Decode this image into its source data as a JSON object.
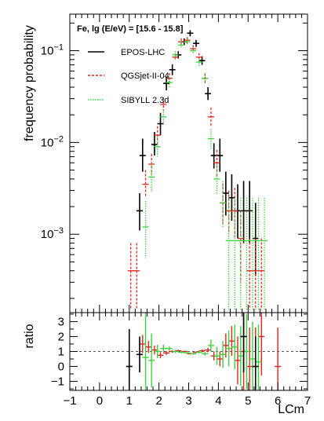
{
  "chart_data": [
    {
      "type": "scatter",
      "panel": "main",
      "annotation": "Fe, lg (E/eV) = [15.6 - 15.8]",
      "ylabel": "frequency probability",
      "xlabel": "",
      "xlim": [
        -1,
        7
      ],
      "ylim": [
        0.00014,
        0.25
      ],
      "yscale": "log",
      "y_tick_labels": [
        {
          "value": 0.1,
          "base": "10",
          "exp": "−1"
        },
        {
          "value": 0.01,
          "base": "10",
          "exp": "−2"
        },
        {
          "value": 0.001,
          "base": "10",
          "exp": "−3"
        }
      ],
      "legend_position": "top-left",
      "series": [
        {
          "name": "EPOS-LHC",
          "color": "#000000",
          "dash": "solid",
          "points": [
            {
              "x": 1.35,
              "y": 0.0018,
              "lo": 0.0011,
              "hi": 0.0028
            },
            {
              "x": 1.45,
              "y": 0.0072,
              "lo": 0.0048,
              "hi": 0.011
            },
            {
              "x": 1.85,
              "y": 0.0095,
              "lo": 0.0072,
              "hi": 0.013
            },
            {
              "x": 2.05,
              "y": 0.016,
              "lo": 0.012,
              "hi": 0.021
            },
            {
              "x": 2.25,
              "y": 0.044,
              "lo": 0.037,
              "hi": 0.052
            },
            {
              "x": 2.45,
              "y": 0.062,
              "lo": 0.054,
              "hi": 0.071
            },
            {
              "x": 2.65,
              "y": 0.09,
              "lo": 0.082,
              "hi": 0.099
            },
            {
              "x": 2.85,
              "y": 0.125,
              "lo": 0.115,
              "hi": 0.136
            },
            {
              "x": 3.05,
              "y": 0.155,
              "lo": 0.143,
              "hi": 0.167
            },
            {
              "x": 3.25,
              "y": 0.12,
              "lo": 0.11,
              "hi": 0.131
            },
            {
              "x": 3.45,
              "y": 0.078,
              "lo": 0.07,
              "hi": 0.087
            },
            {
              "x": 3.65,
              "y": 0.034,
              "lo": 0.029,
              "hi": 0.04
            },
            {
              "x": 3.85,
              "y": 0.0072,
              "lo": 0.0052,
              "hi": 0.0098
            },
            {
              "x": 4.05,
              "y": 0.0072,
              "lo": 0.0048,
              "hi": 0.011
            },
            {
              "x": 4.25,
              "y": 0.0028,
              "lo": 0.0016,
              "hi": 0.0048
            },
            {
              "x": 4.45,
              "y": 0.0025,
              "lo": 0.0014,
              "hi": 0.0045
            },
            {
              "x": 4.65,
              "y": 0.0018,
              "lo": 0.0009,
              "hi": 0.0035
            },
            {
              "x": 4.85,
              "y": 0.0018,
              "lo": 0.0008,
              "hi": 0.0038
            },
            {
              "x": 5.05,
              "y": 0.0018,
              "lo": 0.0008,
              "hi": 0.0038
            },
            {
              "x": 5.25,
              "y": 0.0009,
              "lo": 0.00035,
              "hi": 0.0022
            }
          ]
        },
        {
          "name": "QGSjet-II-04",
          "color": "#e8211e",
          "dash": "3,2",
          "points": [
            {
              "x": 1.05,
              "y": 0.0004,
              "lo": 0.00015,
              "hi": 0.0008
            },
            {
              "x": 1.25,
              "y": 0.0004,
              "lo": 0.00015,
              "hi": 0.0008
            },
            {
              "x": 1.55,
              "y": 0.0035,
              "lo": 0.0025,
              "hi": 0.005
            },
            {
              "x": 1.75,
              "y": 0.0058,
              "lo": 0.0045,
              "hi": 0.0075
            },
            {
              "x": 1.95,
              "y": 0.012,
              "lo": 0.0097,
              "hi": 0.015
            },
            {
              "x": 2.15,
              "y": 0.026,
              "lo": 0.022,
              "hi": 0.031
            },
            {
              "x": 2.35,
              "y": 0.05,
              "lo": 0.044,
              "hi": 0.057
            },
            {
              "x": 2.55,
              "y": 0.085,
              "lo": 0.077,
              "hi": 0.094
            },
            {
              "x": 2.75,
              "y": 0.125,
              "lo": 0.115,
              "hi": 0.136
            },
            {
              "x": 2.95,
              "y": 0.13,
              "lo": 0.12,
              "hi": 0.141
            },
            {
              "x": 3.15,
              "y": 0.105,
              "lo": 0.096,
              "hi": 0.115
            },
            {
              "x": 3.35,
              "y": 0.085,
              "lo": 0.077,
              "hi": 0.094
            },
            {
              "x": 3.55,
              "y": 0.05,
              "lo": 0.044,
              "hi": 0.057
            },
            {
              "x": 3.75,
              "y": 0.019,
              "lo": 0.015,
              "hi": 0.024
            },
            {
              "x": 3.95,
              "y": 0.006,
              "lo": 0.0043,
              "hi": 0.0083
            },
            {
              "x": 4.15,
              "y": 0.0022,
              "lo": 0.0013,
              "hi": 0.0036
            },
            {
              "x": 4.35,
              "y": 0.0018,
              "lo": 0.001,
              "hi": 0.003
            },
            {
              "x": 4.55,
              "y": 0.0018,
              "lo": 0.0009,
              "hi": 0.0032
            },
            {
              "x": 4.75,
              "y": 0.0009,
              "lo": 0.0003,
              "hi": 0.0018
            },
            {
              "x": 5.05,
              "y": 0.0004,
              "lo": 0.00015,
              "hi": 0.0009
            },
            {
              "x": 5.25,
              "y": 0.0004,
              "lo": 0.00015,
              "hi": 0.0009
            },
            {
              "x": 5.45,
              "y": 0.0004,
              "lo": 0.00015,
              "hi": 0.0009
            }
          ]
        },
        {
          "name": "SIBYLL 2.3d",
          "color": "#3ad43a",
          "dash": "1.5,1.5",
          "points": [
            {
              "x": 1.55,
              "y": 0.0012,
              "lo": 0.00055,
              "hi": 0.0023
            },
            {
              "x": 1.75,
              "y": 0.0042,
              "lo": 0.0029,
              "hi": 0.006
            },
            {
              "x": 1.95,
              "y": 0.009,
              "lo": 0.007,
              "hi": 0.0115
            },
            {
              "x": 2.15,
              "y": 0.019,
              "lo": 0.016,
              "hi": 0.023
            },
            {
              "x": 2.35,
              "y": 0.045,
              "lo": 0.039,
              "hi": 0.052
            },
            {
              "x": 2.55,
              "y": 0.09,
              "lo": 0.082,
              "hi": 0.099
            },
            {
              "x": 2.75,
              "y": 0.115,
              "lo": 0.105,
              "hi": 0.126
            },
            {
              "x": 2.95,
              "y": 0.125,
              "lo": 0.115,
              "hi": 0.136
            },
            {
              "x": 3.15,
              "y": 0.1,
              "lo": 0.092,
              "hi": 0.109
            },
            {
              "x": 3.35,
              "y": 0.075,
              "lo": 0.068,
              "hi": 0.083
            },
            {
              "x": 3.55,
              "y": 0.05,
              "lo": 0.044,
              "hi": 0.057
            },
            {
              "x": 3.75,
              "y": 0.011,
              "lo": 0.0085,
              "hi": 0.014
            },
            {
              "x": 3.95,
              "y": 0.004,
              "lo": 0.0027,
              "hi": 0.0058
            },
            {
              "x": 4.15,
              "y": 0.0022,
              "lo": 0.0012,
              "hi": 0.0038
            },
            {
              "x": 4.35,
              "y": 0.00085,
              "lo": 0.00015,
              "hi": 0.0025
            },
            {
              "x": 4.55,
              "y": 0.00085,
              "lo": 0.00015,
              "hi": 0.0025
            },
            {
              "x": 4.75,
              "y": 0.00085,
              "lo": 0.00015,
              "hi": 0.0025
            },
            {
              "x": 4.95,
              "y": 0.00085,
              "lo": 0.00015,
              "hi": 0.0025
            },
            {
              "x": 5.15,
              "y": 0.00085,
              "lo": 0.00015,
              "hi": 0.0025
            },
            {
              "x": 5.35,
              "y": 0.00085,
              "lo": 0.00015,
              "hi": 0.0025
            },
            {
              "x": 5.55,
              "y": 0.00085,
              "lo": 0.00015,
              "hi": 0.0025
            }
          ]
        }
      ]
    },
    {
      "type": "scatter",
      "panel": "ratio",
      "ylabel": "ratio",
      "xlabel": "LCm",
      "xlim": [
        -1,
        7
      ],
      "ylim": [
        -1.6,
        3.6
      ],
      "x_ticks": [
        -1,
        0,
        1,
        2,
        3,
        4,
        5,
        6,
        7
      ],
      "y_ticks": [
        -1,
        0,
        1,
        2,
        3
      ],
      "reference_line": 1,
      "series": [
        {
          "name": "QGSjet-II-04",
          "color": "#e8211e",
          "points": [
            {
              "x": 1.45,
              "y": 1.5,
              "err": 0.6
            },
            {
              "x": 1.65,
              "y": 1.3,
              "err": 0.4
            },
            {
              "x": 1.85,
              "y": 1.1,
              "err": 0.3
            },
            {
              "x": 2.05,
              "y": 0.75,
              "err": 0.2
            },
            {
              "x": 2.25,
              "y": 0.9,
              "err": 0.12
            },
            {
              "x": 2.45,
              "y": 1.0,
              "err": 0.08
            },
            {
              "x": 2.65,
              "y": 1.05,
              "err": 0.06
            },
            {
              "x": 2.85,
              "y": 1.0,
              "err": 0.05
            },
            {
              "x": 3.05,
              "y": 0.85,
              "err": 0.05
            },
            {
              "x": 3.25,
              "y": 0.95,
              "err": 0.06
            },
            {
              "x": 3.45,
              "y": 1.05,
              "err": 0.08
            },
            {
              "x": 3.65,
              "y": 1.1,
              "err": 0.15
            },
            {
              "x": 3.85,
              "y": 0.7,
              "err": 0.3
            },
            {
              "x": 4.05,
              "y": 0.5,
              "err": 0.5
            },
            {
              "x": 4.25,
              "y": 1.4,
              "err": 0.8
            },
            {
              "x": 4.45,
              "y": 1.7,
              "err": 1.0
            },
            {
              "x": 4.65,
              "y": 0.4,
              "err": 1.6
            },
            {
              "x": 4.85,
              "y": 1.0,
              "err": 2.6
            },
            {
              "x": 5.05,
              "y": 0.0,
              "err": 2.6
            },
            {
              "x": 5.25,
              "y": 0.0,
              "err": 2.6
            },
            {
              "x": 5.45,
              "y": 2.0,
              "err": 2.6
            },
            {
              "x": 6.0,
              "y": 0.0,
              "err": 2.6
            }
          ]
        },
        {
          "name": "SIBYLL 2.3d",
          "color": "#3ad43a",
          "points": [
            {
              "x": 1.55,
              "y": 0.6,
              "err": 3.0
            },
            {
              "x": 1.75,
              "y": 0.4,
              "err": 1.8
            },
            {
              "x": 1.95,
              "y": 1.0,
              "err": 0.45
            },
            {
              "x": 2.15,
              "y": 1.2,
              "err": 0.25
            },
            {
              "x": 2.35,
              "y": 1.2,
              "err": 0.15
            },
            {
              "x": 2.55,
              "y": 1.0,
              "err": 0.1
            },
            {
              "x": 2.75,
              "y": 0.95,
              "err": 0.07
            },
            {
              "x": 2.95,
              "y": 0.9,
              "err": 0.06
            },
            {
              "x": 3.15,
              "y": 0.85,
              "err": 0.06
            },
            {
              "x": 3.35,
              "y": 0.95,
              "err": 0.08
            },
            {
              "x": 3.55,
              "y": 0.85,
              "err": 0.12
            },
            {
              "x": 3.75,
              "y": 1.4,
              "err": 0.4
            },
            {
              "x": 3.95,
              "y": 0.7,
              "err": 0.6
            },
            {
              "x": 4.15,
              "y": 0.8,
              "err": 0.9
            },
            {
              "x": 4.35,
              "y": 1.2,
              "err": 1.2
            },
            {
              "x": 4.55,
              "y": 1.3,
              "err": 1.5
            },
            {
              "x": 4.75,
              "y": 0.7,
              "err": 2.0
            },
            {
              "x": 4.95,
              "y": 1.0,
              "err": 2.5
            },
            {
              "x": 5.15,
              "y": 0.5,
              "err": 2.5
            },
            {
              "x": 5.35,
              "y": 0.3,
              "err": 2.5
            }
          ]
        },
        {
          "name": "EPOS-LHC",
          "color": "#000000",
          "points": [
            {
              "x": 1.0,
              "y": 0.0,
              "err": 2.5
            },
            {
              "x": 1.35,
              "y": 0.8,
              "err": 1.2
            },
            {
              "x": 4.85,
              "y": 2.0,
              "err": 2.4
            },
            {
              "x": 5.25,
              "y": 0.0,
              "err": 2.0
            }
          ]
        }
      ]
    }
  ]
}
